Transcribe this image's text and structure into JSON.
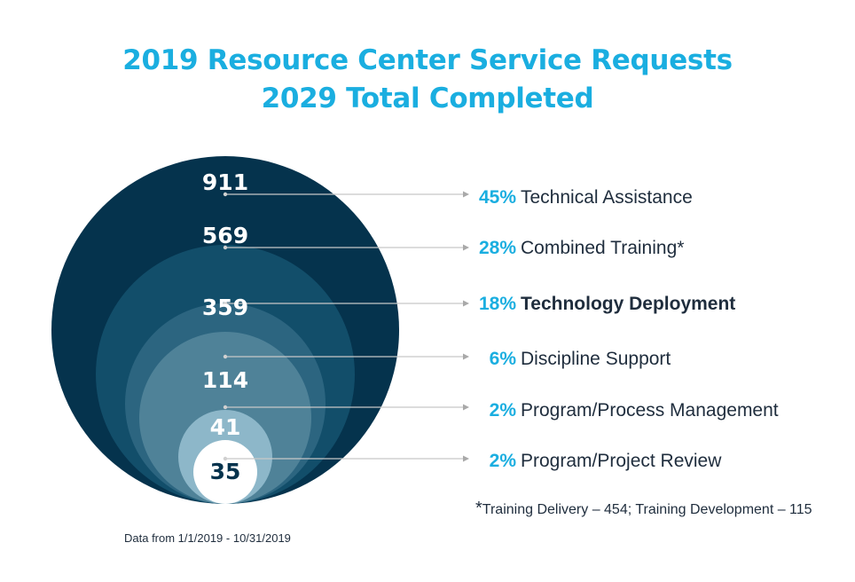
{
  "chart_data": {
    "type": "nested-bubble",
    "title": "2019 Resource Center Service Requests",
    "subtitle": "2029 Total Completed",
    "categories": [
      "Technical Assistance",
      "Combined Training*",
      "Technology Deployment",
      "Discipline Support",
      "Program/Process Management",
      "Program/Project Review"
    ],
    "values": [
      911,
      569,
      359,
      114,
      41,
      35
    ],
    "percent_labels": [
      "45%",
      "28%",
      "18%",
      "6%",
      "2%",
      "2%"
    ],
    "value_labels": [
      "911",
      "569",
      "359",
      "114",
      "41",
      "35"
    ],
    "colors": [
      "#05334d",
      "#124e6a",
      "#2c6580",
      "#4f8298",
      "#8db7c9",
      "#ffffff"
    ],
    "value_text_colors": [
      "#ffffff",
      "#ffffff",
      "#ffffff",
      "#ffffff",
      "#ffffff",
      "#05334d"
    ],
    "accent_color": "#1aaee0",
    "label_color": "#1f2d3d",
    "connector_color": "#c8c8c8"
  },
  "footnote": {
    "star": "*",
    "text": "Training Delivery – 454; Training Development – 115"
  },
  "source": "Data from 1/1/2019 - 10/31/2019"
}
